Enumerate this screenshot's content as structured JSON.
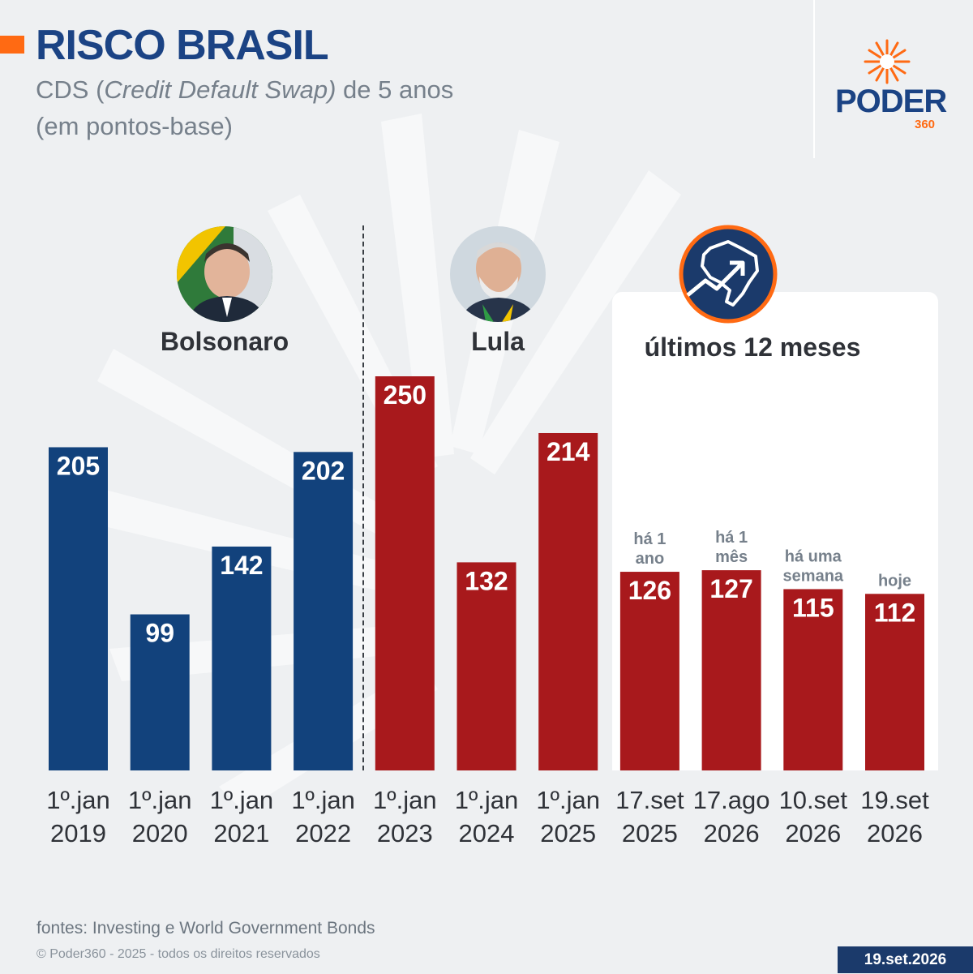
{
  "header": {
    "title": "RISCO BRASIL",
    "subtitle_pre": "CDS (",
    "subtitle_italic": "Credit Default Swap)",
    "subtitle_post": " de 5 anos",
    "subtitle_line2": "(em pontos-base)"
  },
  "logo": {
    "word": "PODER",
    "number": "360"
  },
  "groups": {
    "bolsonaro": "Bolsonaro",
    "lula": "Lula",
    "recent": "últimos 12 meses"
  },
  "chart_data": {
    "type": "bar",
    "categories": [
      [
        "1º.jan",
        "2019"
      ],
      [
        "1º.jan",
        "2020"
      ],
      [
        "1º.jan",
        "2021"
      ],
      [
        "1º.jan",
        "2022"
      ],
      [
        "1º.jan",
        "2023"
      ],
      [
        "1º.jan",
        "2024"
      ],
      [
        "1º.jan",
        "2025"
      ],
      [
        "17.set",
        "2025"
      ],
      [
        "17.ago",
        "2026"
      ],
      [
        "10.set",
        "2026"
      ],
      [
        "19.set",
        "2026"
      ]
    ],
    "values": [
      205,
      99,
      142,
      202,
      250,
      132,
      214,
      126,
      127,
      115,
      112
    ],
    "annotations": [
      null,
      null,
      null,
      null,
      null,
      null,
      null,
      [
        "há 1",
        "ano"
      ],
      [
        "há 1",
        "mês"
      ],
      [
        "há uma",
        "semana"
      ],
      [
        "hoje"
      ]
    ],
    "bar_colors": [
      "#12427c",
      "#12427c",
      "#12427c",
      "#12427c",
      "#a8191c",
      "#a8191c",
      "#a8191c",
      "#a8191c",
      "#a8191c",
      "#a8191c",
      "#a8191c"
    ],
    "ylim": [
      0,
      250
    ]
  },
  "colors": {
    "bolsonaro": "#12427c",
    "lula": "#a8191c",
    "accent": "#ff6a13",
    "brand": "#1b4384"
  },
  "footer": {
    "source": "fontes: Investing e World Government Bonds",
    "copyright": "© Poder360 - 2025 - todos os direitos reservados",
    "date": "19.set.2026"
  }
}
